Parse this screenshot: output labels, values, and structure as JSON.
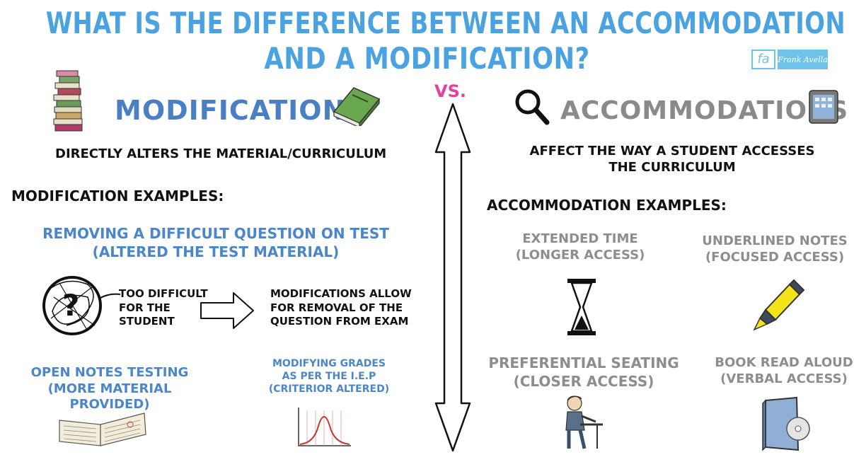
{
  "title": {
    "line1": "WHAT IS THE DIFFERENCE BETWEEN AN ACCOMMODATION",
    "line2": "AND A MODIFICATION?"
  },
  "logo": {
    "mark": "fa",
    "name": "Frank Avella"
  },
  "vs": "VS.",
  "modifications": {
    "heading": "MODIFICATIONS",
    "definition": "DIRECTLY ALTERS THE MATERIAL/CURRICULUM",
    "examples_heading": "MODIFICATION EXAMPLES:",
    "example1": {
      "line1": "REMOVING A DIFFICULT QUESTION ON TEST",
      "line2": "(ALTERED THE TEST MATERIAL)"
    },
    "too_difficult": {
      "line1": "TOO DIFFICULT",
      "line2": "FOR THE",
      "line3": "STUDENT"
    },
    "allow": {
      "line1": "MODIFICATIONS ALLOW",
      "line2": "FOR REMOVAL OF THE",
      "line3": "QUESTION FROM EXAM"
    },
    "example2": {
      "line1": "OPEN NOTES TESTING",
      "line2": "(MORE MATERIAL PROVIDED)"
    },
    "example3": {
      "line1": "MODIFYING GRADES",
      "line2": "AS PER THE I.E.P",
      "line3": "(CRITERIOR ALTERED)"
    }
  },
  "accommodations": {
    "heading": "ACCOMMODATIONS",
    "definition": {
      "line1": "AFFECT THE WAY A STUDENT ACCESSES",
      "line2": "THE CURRICULUM"
    },
    "examples_heading": "ACCOMMODATION EXAMPLES:",
    "example1": {
      "line1": "EXTENDED TIME",
      "line2": "(LONGER ACCESS)"
    },
    "example2": {
      "line1": "UNDERLINED NOTES",
      "line2": "(FOCUSED ACCESS)"
    },
    "example3": {
      "line1": "PREFERENTIAL SEATING",
      "line2": "(CLOSER ACCESS)"
    },
    "example4": {
      "line1": "BOOK READ ALOUD",
      "line2": "(VERBAL ACCESS)"
    }
  },
  "icons": {
    "books": "stack-of-books-icon",
    "green_book": "green-book-icon",
    "magnifier": "magnifying-glass-icon",
    "tablet": "tablet-icon",
    "question": "scribbled-question-icon",
    "arrow": "right-arrow-icon",
    "notebook": "open-notebook-icon",
    "bell_curve": "bell-curve-icon",
    "hourglass": "hourglass-icon",
    "highlighter": "highlighter-icon",
    "student": "student-at-desk-icon",
    "audiobook": "audiobook-cd-icon"
  },
  "colors": {
    "title": "#4aa3e0",
    "mod_heading": "#4a7fc4",
    "acc_heading": "#8a8a8a",
    "vs": "#e63fa0",
    "highlighter": "#f2e31a"
  }
}
